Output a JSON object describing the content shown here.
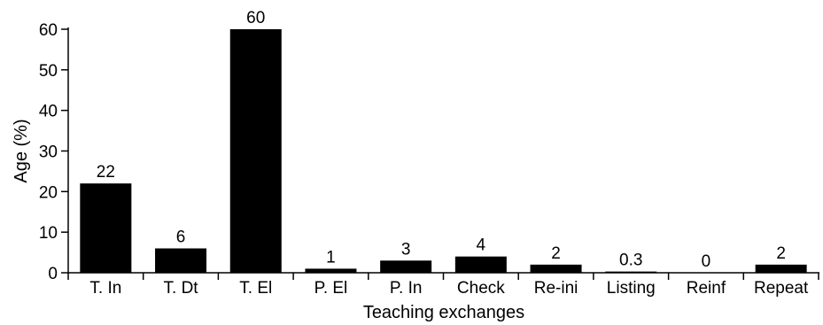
{
  "chart_data": {
    "type": "bar",
    "categories": [
      "T. In",
      "T. Dt",
      "T. El",
      "P. El",
      "P. In",
      "Check",
      "Re-ini",
      "Listing",
      "Reinf",
      "Repeat"
    ],
    "values": [
      22,
      6,
      60,
      1,
      3,
      4,
      2,
      0.3,
      0,
      2
    ],
    "data_labels": [
      "22",
      "6",
      "60",
      "1",
      "3",
      "4",
      "2",
      "0.3",
      "0",
      "2"
    ],
    "xlabel": "Teaching exchanges",
    "ylabel": "Age (%)",
    "ylim": [
      0,
      60
    ],
    "yticks": [
      0,
      10,
      20,
      30,
      40,
      50,
      60
    ],
    "bar_color": "#000000",
    "grid": false,
    "legend": "none"
  }
}
